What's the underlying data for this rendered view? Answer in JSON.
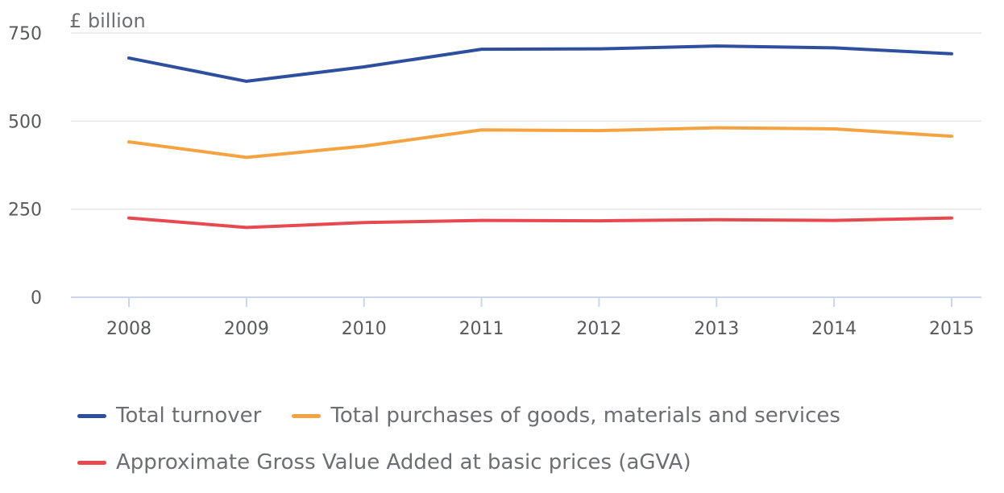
{
  "chart_data": {
    "type": "line",
    "ylabel": "£ billion",
    "ylim": [
      0,
      750
    ],
    "yticks": [
      0,
      250,
      500,
      750
    ],
    "categories": [
      "2008",
      "2009",
      "2010",
      "2011",
      "2012",
      "2013",
      "2014",
      "2015"
    ],
    "grid": true,
    "legend_position": "bottom",
    "series": [
      {
        "name": "Total turnover",
        "color": "#2e4f9e",
        "values": [
          679,
          613,
          654,
          704,
          705,
          713,
          708,
          691
        ]
      },
      {
        "name": "Total purchases of goods, materials and services",
        "color": "#f4a340",
        "values": [
          441,
          397,
          429,
          475,
          473,
          481,
          478,
          457
        ]
      },
      {
        "name": "Approximate Gross Value Added at basic prices (aGVA)",
        "color": "#e8484f",
        "values": [
          225,
          198,
          212,
          218,
          217,
          220,
          218,
          225
        ]
      }
    ]
  }
}
